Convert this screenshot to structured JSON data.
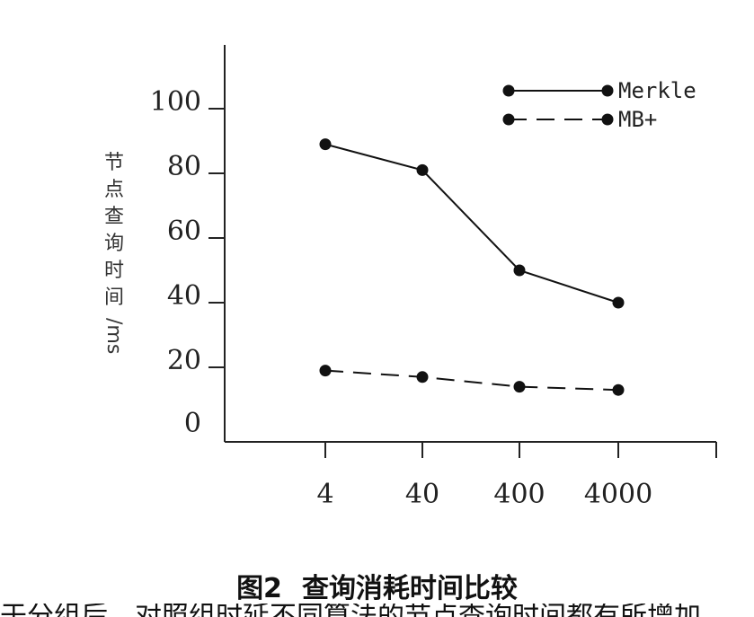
{
  "chart_data": {
    "type": "line",
    "categories": [
      "4",
      "40",
      "400",
      "4000"
    ],
    "series": [
      {
        "name": "Merkle",
        "values": [
          89,
          81,
          50,
          40
        ],
        "line_style": "solid",
        "color": "#111111"
      },
      {
        "name": "MB+",
        "values": [
          19,
          17,
          14,
          13
        ],
        "line_style": "dashed",
        "color": "#111111"
      }
    ],
    "yticks": [
      0,
      20,
      40,
      60,
      80,
      100
    ],
    "ylim": [
      0,
      110
    ],
    "ylabel": "节点查询时间/ms",
    "xlabel": "",
    "title": "",
    "grid": false,
    "legend_position": "top-right"
  },
  "caption": {
    "figure_number": "图2",
    "title": "查询消耗时间比较"
  },
  "partial_text_below": "于分组后，对照组时延不同算法的节点查询时间都有所增加"
}
